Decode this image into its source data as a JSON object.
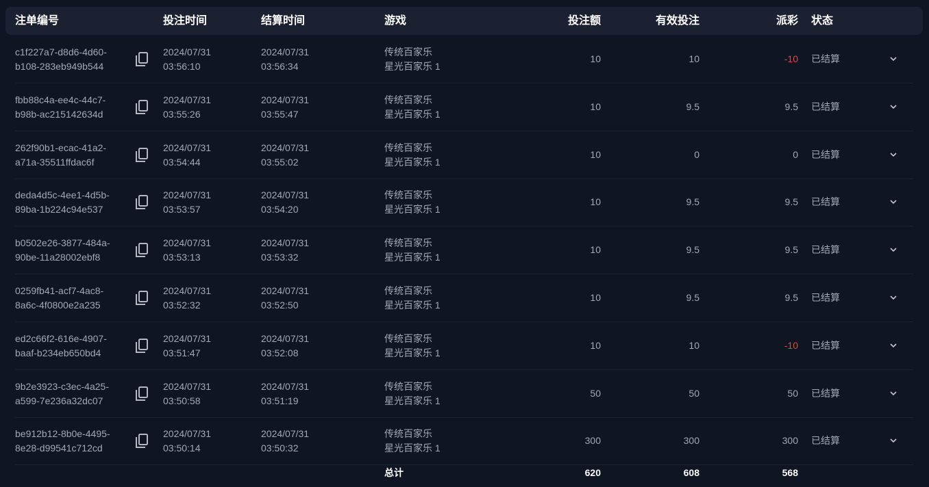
{
  "header": {
    "id": "注单编号",
    "bet_time": "投注时间",
    "settle_time": "结算时间",
    "game": "游戏",
    "amount": "投注额",
    "valid": "有效投注",
    "payout": "派彩",
    "status": "状态"
  },
  "colors": {
    "negative": "#e5483d",
    "background": "#0f1523",
    "header": "#1b2130"
  },
  "rows": [
    {
      "id1": "c1f227a7-d8d6-4d60-",
      "id2": "b108-283eb949b544",
      "bd": "2024/07/31",
      "bt": "03:56:10",
      "sd": "2024/07/31",
      "st": "03:56:34",
      "g1": "传统百家乐",
      "g2": "星光百家乐 1",
      "amount": "10",
      "valid": "10",
      "payout": "-10",
      "status": "已结算"
    },
    {
      "id1": "fbb88c4a-ee4c-44c7-",
      "id2": "b98b-ac215142634d",
      "bd": "2024/07/31",
      "bt": "03:55:26",
      "sd": "2024/07/31",
      "st": "03:55:47",
      "g1": "传统百家乐",
      "g2": "星光百家乐 1",
      "amount": "10",
      "valid": "9.5",
      "payout": "9.5",
      "status": "已结算"
    },
    {
      "id1": "262f90b1-ecac-41a2-",
      "id2": "a71a-35511ffdac6f",
      "bd": "2024/07/31",
      "bt": "03:54:44",
      "sd": "2024/07/31",
      "st": "03:55:02",
      "g1": "传统百家乐",
      "g2": "星光百家乐 1",
      "amount": "10",
      "valid": "0",
      "payout": "0",
      "status": "已结算"
    },
    {
      "id1": "deda4d5c-4ee1-4d5b-",
      "id2": "89ba-1b224c94e537",
      "bd": "2024/07/31",
      "bt": "03:53:57",
      "sd": "2024/07/31",
      "st": "03:54:20",
      "g1": "传统百家乐",
      "g2": "星光百家乐 1",
      "amount": "10",
      "valid": "9.5",
      "payout": "9.5",
      "status": "已结算"
    },
    {
      "id1": "b0502e26-3877-484a-",
      "id2": "90be-11a28002ebf8",
      "bd": "2024/07/31",
      "bt": "03:53:13",
      "sd": "2024/07/31",
      "st": "03:53:32",
      "g1": "传统百家乐",
      "g2": "星光百家乐 1",
      "amount": "10",
      "valid": "9.5",
      "payout": "9.5",
      "status": "已结算"
    },
    {
      "id1": "0259fb41-acf7-4ac8-",
      "id2": "8a6c-4f0800e2a235",
      "bd": "2024/07/31",
      "bt": "03:52:32",
      "sd": "2024/07/31",
      "st": "03:52:50",
      "g1": "传统百家乐",
      "g2": "星光百家乐 1",
      "amount": "10",
      "valid": "9.5",
      "payout": "9.5",
      "status": "已结算"
    },
    {
      "id1": "ed2c66f2-616e-4907-",
      "id2": "baaf-b234eb650bd4",
      "bd": "2024/07/31",
      "bt": "03:51:47",
      "sd": "2024/07/31",
      "st": "03:52:08",
      "g1": "传统百家乐",
      "g2": "星光百家乐 1",
      "amount": "10",
      "valid": "10",
      "payout": "-10",
      "status": "已结算"
    },
    {
      "id1": "9b2e3923-c3ec-4a25-",
      "id2": "a599-7e236a32dc07",
      "bd": "2024/07/31",
      "bt": "03:50:58",
      "sd": "2024/07/31",
      "st": "03:51:19",
      "g1": "传统百家乐",
      "g2": "星光百家乐 1",
      "amount": "50",
      "valid": "50",
      "payout": "50",
      "status": "已结算"
    },
    {
      "id1": "be912b12-8b0e-4495-",
      "id2": "8e28-d99541c712cd",
      "bd": "2024/07/31",
      "bt": "03:50:14",
      "sd": "2024/07/31",
      "st": "03:50:32",
      "g1": "传统百家乐",
      "g2": "星光百家乐 1",
      "amount": "300",
      "valid": "300",
      "payout": "300",
      "status": "已结算"
    }
  ],
  "total": {
    "label": "总计",
    "amount": "620",
    "valid": "608",
    "payout": "568"
  }
}
